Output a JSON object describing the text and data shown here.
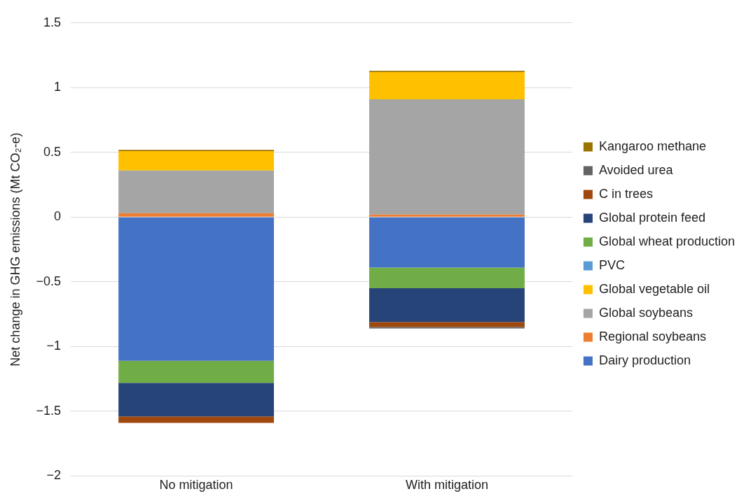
{
  "chart_data": {
    "type": "bar",
    "stacked": true,
    "ylabel": "Net change in GHG emissions (Mt CO₂-e)",
    "categories": [
      "No mitigation",
      "With mitigation"
    ],
    "series": [
      {
        "name": "Dairy production",
        "color": "#4472c4",
        "values": [
          -1.11,
          -0.39
        ]
      },
      {
        "name": "Regional soybeans",
        "color": "#ed7d31",
        "values": [
          0.03,
          0.02
        ]
      },
      {
        "name": "Global soybeans",
        "color": "#a5a5a5",
        "values": [
          0.33,
          0.89
        ]
      },
      {
        "name": "Global vegetable oil",
        "color": "#ffc000",
        "values": [
          0.15,
          0.21
        ]
      },
      {
        "name": "PVC",
        "color": "#5b9bd5",
        "values": [
          0,
          0
        ]
      },
      {
        "name": "Global wheat production",
        "color": "#70ad47",
        "values": [
          -0.17,
          -0.16
        ]
      },
      {
        "name": "Global protein feed",
        "color": "#264478",
        "values": [
          -0.26,
          -0.26
        ]
      },
      {
        "name": "C in trees",
        "color": "#9e480e",
        "values": [
          -0.05,
          -0.04
        ]
      },
      {
        "name": "Avoided urea",
        "color": "#636363",
        "values": [
          0,
          -0.01
        ]
      },
      {
        "name": "Kangaroo methane",
        "color": "#997300",
        "values": [
          0.01,
          0.01
        ]
      }
    ],
    "ylim": [
      -2,
      1.5
    ],
    "yticks": [
      {
        "value": -2,
        "label": "−2"
      },
      {
        "value": -1.5,
        "label": "−1.5"
      },
      {
        "value": -1,
        "label": "−1"
      },
      {
        "value": -0.5,
        "label": "−0.5"
      },
      0,
      0.5,
      1,
      1.5
    ],
    "grid": "y",
    "legend": "right"
  }
}
